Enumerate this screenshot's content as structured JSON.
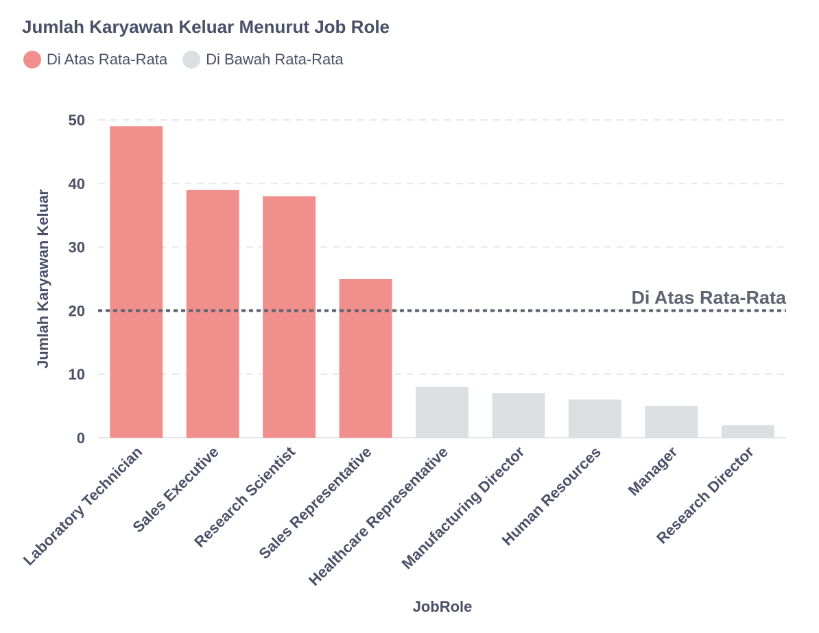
{
  "chart_data": {
    "type": "bar",
    "title": "Jumlah Karyawan Keluar Menurut Job Role",
    "xlabel": "JobRole",
    "ylabel": "Jumlah Karyawan Keluar",
    "categories": [
      "Laboratory Technician",
      "Sales Executive",
      "Research Scientist",
      "Sales Representative",
      "Healthcare Representative",
      "Manufacturing Director",
      "Human Resources",
      "Manager",
      "Research Director"
    ],
    "values": [
      49,
      39,
      38,
      25,
      8,
      7,
      6,
      5,
      2
    ],
    "groups": [
      "above",
      "above",
      "above",
      "above",
      "below",
      "below",
      "below",
      "below",
      "below"
    ],
    "ylim": [
      0,
      50
    ],
    "yticks": [
      "0",
      "10",
      "20",
      "30",
      "40",
      "50"
    ],
    "grid": true,
    "legend": {
      "position": "top-left",
      "entries": [
        {
          "key": "above",
          "label": "Di Atas Rata-Rata",
          "color": "#f08f8c"
        },
        {
          "key": "below",
          "label": "Di Bawah Rata-Rata",
          "color": "#dcdfe1"
        }
      ]
    },
    "reference_line": {
      "value": 20,
      "label": "Di Atas Rata-Rata",
      "color": "#5f6470"
    }
  }
}
